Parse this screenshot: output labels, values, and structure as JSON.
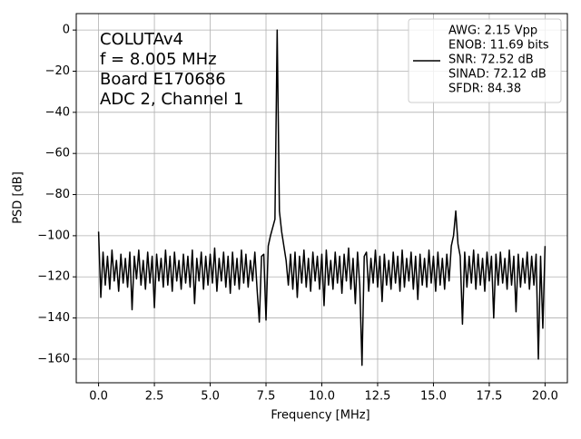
{
  "chart_data": {
    "type": "line",
    "xlabel": "Frequency [MHz]",
    "ylabel": "PSD [dB]",
    "annotation": [
      "COLUTAv4",
      "f = 8.005 MHz",
      "Board E170686",
      "ADC 2, Channel 1"
    ],
    "xlim": [
      -1,
      21
    ],
    "ylim": [
      -171.5,
      8
    ],
    "xticks": [
      {
        "value": 0,
        "label": "0.0"
      },
      2.5,
      {
        "value": 5,
        "label": "5.0"
      },
      7.5,
      {
        "value": 10,
        "label": "10.0"
      },
      12.5,
      {
        "value": 15,
        "label": "15.0"
      },
      17.5,
      {
        "value": 20,
        "label": "20.0"
      }
    ],
    "yticks": [
      0,
      {
        "value": -20,
        "label": "−20"
      },
      {
        "value": -40,
        "label": "−40"
      },
      {
        "value": -60,
        "label": "−60"
      },
      {
        "value": -80,
        "label": "−80"
      },
      {
        "value": -100,
        "label": "−100"
      },
      {
        "value": -120,
        "label": "−120"
      },
      {
        "value": -140,
        "label": "−140"
      },
      {
        "value": -160,
        "label": "−160"
      }
    ],
    "grid": true,
    "legend": "upper right",
    "x": [
      0,
      0.1,
      0.2,
      0.3,
      0.4,
      0.5,
      0.6,
      0.7,
      0.8,
      0.9,
      1,
      1.1,
      1.2,
      1.3,
      1.4,
      1.5,
      1.6,
      1.7,
      1.8,
      1.9,
      2,
      2.1,
      2.2,
      2.3,
      2.4,
      2.5,
      2.6,
      2.7,
      2.8,
      2.9,
      3,
      3.1,
      3.2,
      3.3,
      3.4,
      3.5,
      3.6,
      3.7,
      3.8,
      3.9,
      4,
      4.1,
      4.2,
      4.3,
      4.4,
      4.5,
      4.6,
      4.7,
      4.8,
      4.9,
      5,
      5.1,
      5.2,
      5.3,
      5.4,
      5.5,
      5.6,
      5.7,
      5.8,
      5.9,
      6,
      6.1,
      6.2,
      6.3,
      6.4,
      6.5,
      6.6,
      6.7,
      6.8,
      6.9,
      7,
      7.1,
      7.2,
      7.3,
      7.4,
      7.5,
      7.6,
      7.7,
      7.8,
      7.9,
      8,
      8.1,
      8.2,
      8.3,
      8.4,
      8.5,
      8.6,
      8.7,
      8.8,
      8.9,
      9,
      9.1,
      9.2,
      9.3,
      9.4,
      9.5,
      9.6,
      9.7,
      9.8,
      9.9,
      10,
      10.1,
      10.2,
      10.3,
      10.4,
      10.5,
      10.6,
      10.7,
      10.8,
      10.9,
      11,
      11.1,
      11.2,
      11.3,
      11.4,
      11.5,
      11.6,
      11.7,
      11.8,
      11.9,
      12,
      12.1,
      12.2,
      12.3,
      12.4,
      12.5,
      12.6,
      12.7,
      12.8,
      12.9,
      13,
      13.1,
      13.2,
      13.3,
      13.4,
      13.5,
      13.6,
      13.7,
      13.8,
      13.9,
      14,
      14.1,
      14.2,
      14.3,
      14.4,
      14.5,
      14.6,
      14.7,
      14.8,
      14.9,
      15,
      15.1,
      15.2,
      15.3,
      15.4,
      15.5,
      15.6,
      15.7,
      15.8,
      15.9,
      16,
      16.1,
      16.2,
      16.3,
      16.4,
      16.5,
      16.6,
      16.7,
      16.8,
      16.9,
      17,
      17.1,
      17.2,
      17.3,
      17.4,
      17.5,
      17.6,
      17.7,
      17.8,
      17.9,
      18,
      18.1,
      18.2,
      18.3,
      18.4,
      18.5,
      18.6,
      18.7,
      18.8,
      18.9,
      19,
      19.1,
      19.2,
      19.3,
      19.4,
      19.5,
      19.6,
      19.7,
      19.8,
      19.9,
      20
    ],
    "series": [
      {
        "name": [
          "AWG: 2.15 Vpp",
          "ENOB: 11.69 bits",
          "SNR: 72.52 dB",
          "SINAD: 72.12 dB",
          "SFDR: 84.38"
        ],
        "color": "#000000",
        "values": [
          -98,
          -130,
          -108,
          -124,
          -110,
          -126,
          -107,
          -122,
          -112,
          -127,
          -109,
          -123,
          -111,
          -125,
          -108,
          -136,
          -110,
          -121,
          -107,
          -124,
          -112,
          -126,
          -108,
          -123,
          -110,
          -135,
          -109,
          -122,
          -111,
          -125,
          -107,
          -124,
          -110,
          -127,
          -108,
          -122,
          -112,
          -126,
          -109,
          -123,
          -110,
          -125,
          -107,
          -133,
          -111,
          -122,
          -108,
          -126,
          -110,
          -124,
          -109,
          -123,
          -106,
          -127,
          -111,
          -122,
          -108,
          -125,
          -110,
          -128,
          -108,
          -124,
          -111,
          -126,
          -107,
          -123,
          -109,
          -125,
          -112,
          -122,
          -108,
          -126,
          -142,
          -110,
          -109,
          -141,
          -105,
          -100,
          -96,
          -92,
          0,
          -88,
          -98,
          -105,
          -112,
          -124,
          -109,
          -126,
          -108,
          -130,
          -110,
          -123,
          -107,
          -125,
          -111,
          -127,
          -108,
          -122,
          -110,
          -126,
          -109,
          -134,
          -107,
          -124,
          -112,
          -126,
          -108,
          -123,
          -110,
          -128,
          -109,
          -122,
          -106,
          -126,
          -111,
          -133,
          -108,
          -124,
          -163,
          -110,
          -108,
          -127,
          -111,
          -123,
          -107,
          -125,
          -110,
          -132,
          -109,
          -124,
          -112,
          -126,
          -108,
          -123,
          -110,
          -127,
          -107,
          -125,
          -111,
          -122,
          -108,
          -126,
          -110,
          -131,
          -109,
          -124,
          -111,
          -125,
          -107,
          -123,
          -110,
          -127,
          -108,
          -124,
          -111,
          -126,
          -109,
          -122,
          -105,
          -100,
          -88,
          -104,
          -110,
          -143,
          -108,
          -125,
          -110,
          -123,
          -107,
          -126,
          -109,
          -124,
          -111,
          -127,
          -108,
          -122,
          -110,
          -140,
          -109,
          -124,
          -108,
          -123,
          -111,
          -126,
          -107,
          -124,
          -110,
          -137,
          -109,
          -125,
          -111,
          -123,
          -108,
          -126,
          -110,
          -124,
          -109,
          -160,
          -110,
          -145,
          -105
        ]
      }
    ]
  }
}
